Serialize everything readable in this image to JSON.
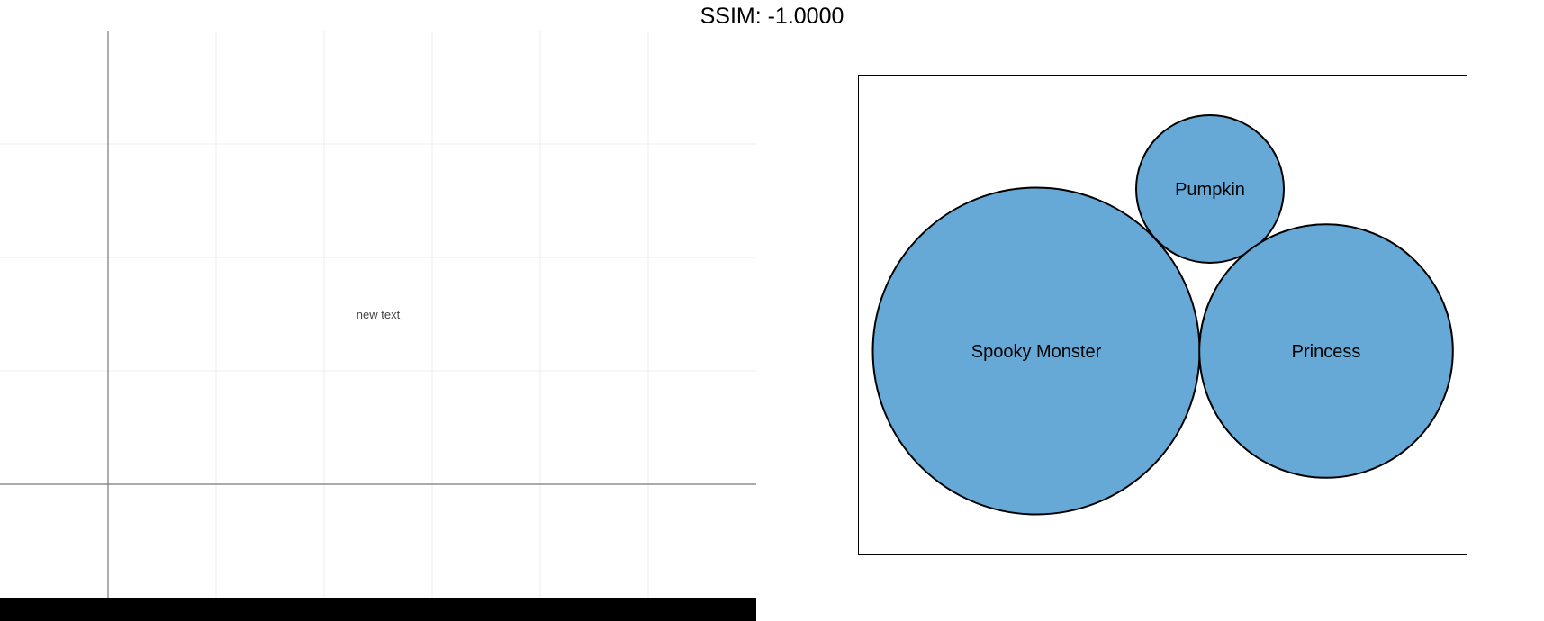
{
  "header": {
    "title": "SSIM: -1.0000"
  },
  "left_plot": {
    "annotation": "new text"
  },
  "chart_data": [
    {
      "type": "scatter",
      "title": "",
      "xlabel": "",
      "ylabel": "",
      "grid": true,
      "points": [],
      "annotations": [
        {
          "text": "new text"
        }
      ]
    },
    {
      "type": "bubble",
      "title": "",
      "grid": false,
      "bubbles": [
        {
          "label": "Pumpkin",
          "value": 1.0
        },
        {
          "label": "Spooky Monster",
          "value": 4.9
        },
        {
          "label": "Princess",
          "value": 2.95
        }
      ],
      "colors": {
        "fill": "#66a9d6",
        "stroke": "#000000"
      }
    }
  ]
}
